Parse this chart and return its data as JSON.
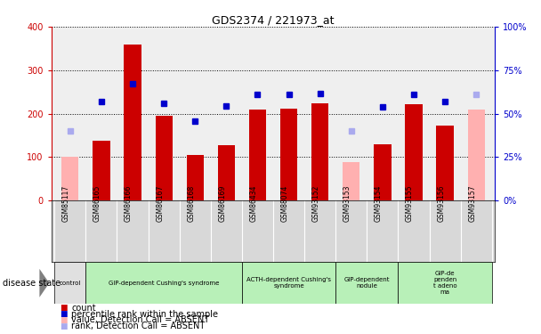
{
  "title": "GDS2374 / 221973_at",
  "samples": [
    "GSM85117",
    "GSM86165",
    "GSM86166",
    "GSM86167",
    "GSM86168",
    "GSM86169",
    "GSM86434",
    "GSM88074",
    "GSM93152",
    "GSM93153",
    "GSM93154",
    "GSM93155",
    "GSM93156",
    "GSM93157"
  ],
  "count_values": [
    null,
    137,
    358,
    194,
    104,
    128,
    210,
    212,
    224,
    null,
    130,
    221,
    172,
    null
  ],
  "count_absent_values": [
    100,
    null,
    null,
    null,
    null,
    null,
    null,
    null,
    null,
    88,
    null,
    null,
    null,
    210
  ],
  "percentile_values": [
    null,
    57,
    67,
    56,
    45.5,
    54.5,
    61,
    61,
    61.5,
    null,
    54,
    61,
    57,
    null
  ],
  "percentile_absent_values": [
    40,
    null,
    null,
    null,
    null,
    null,
    null,
    null,
    null,
    40,
    null,
    null,
    null,
    61
  ],
  "ylim_left": [
    0,
    400
  ],
  "ylim_right": [
    0,
    100
  ],
  "yticks_left": [
    0,
    100,
    200,
    300,
    400
  ],
  "yticks_right": [
    0,
    25,
    50,
    75,
    100
  ],
  "bar_color_red": "#cc0000",
  "bar_color_pink": "#ffb0b0",
  "dot_color_blue": "#0000cc",
  "dot_color_lightblue": "#aaaaee",
  "bg_color": "#efefef",
  "group_colors": [
    "#e0e0e0",
    "#b8f0b8",
    "#b8f0b8",
    "#b8f0b8",
    "#b8f0b8"
  ],
  "group_labels": [
    "control",
    "GIP-dependent Cushing's syndrome",
    "ACTH-dependent Cushing's\nsyndrome",
    "GIP-dependent\nnodule",
    "GIP-de\npenden\nt adeno\nma"
  ],
  "group_starts": [
    0,
    1,
    6,
    9,
    11
  ],
  "group_ends": [
    1,
    6,
    9,
    11,
    14
  ],
  "legend_items": [
    {
      "color": "#cc0000",
      "label": "count"
    },
    {
      "color": "#0000cc",
      "label": "percentile rank within the sample"
    },
    {
      "color": "#ffb0b0",
      "label": "value, Detection Call = ABSENT"
    },
    {
      "color": "#aaaaee",
      "label": "rank, Detection Call = ABSENT"
    }
  ]
}
